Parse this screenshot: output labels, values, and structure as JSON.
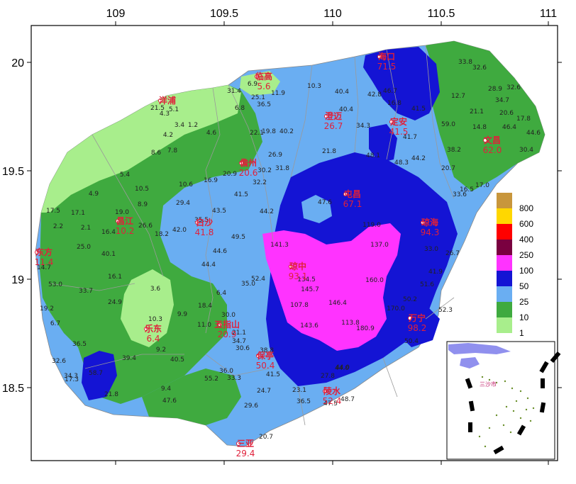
{
  "axes": {
    "lon_ticks": [
      "109",
      "109.5",
      "110",
      "110.5",
      "111"
    ],
    "lat_ticks": [
      "20",
      "19.5",
      "19",
      "18.5"
    ]
  },
  "legend": {
    "labels": [
      "800",
      "600",
      "400",
      "250",
      "100",
      "50",
      "25",
      "10",
      "1"
    ],
    "colors": [
      "#c8963c",
      "#ffd700",
      "#ff0000",
      "#7a0040",
      "#ff33ff",
      "#1414d4",
      "#6aaef2",
      "#3faa3f",
      "#a8ee8c"
    ]
  },
  "cities": [
    {
      "name": "海口",
      "value": "71.5"
    },
    {
      "name": "临高",
      "value": "5.6"
    },
    {
      "name": "洋浦",
      "value": ""
    },
    {
      "name": "澄迈",
      "value": "26.7"
    },
    {
      "name": "定安",
      "value": "41.5"
    },
    {
      "name": "文昌",
      "value": "62.0"
    },
    {
      "name": "儋州",
      "value": "20.6"
    },
    {
      "name": "屯昌",
      "value": "67.1"
    },
    {
      "name": "昌江",
      "value": "10.2"
    },
    {
      "name": "白沙",
      "value": "41.8"
    },
    {
      "name": "琼海",
      "value": "94.3"
    },
    {
      "name": "东方",
      "value": "11.4"
    },
    {
      "name": "琼中",
      "value": "93.1"
    },
    {
      "name": "乐东",
      "value": "6.4"
    },
    {
      "name": "五指山",
      "value": "20.9"
    },
    {
      "name": "万宁",
      "value": "98.2"
    },
    {
      "name": "保亭",
      "value": "50.4"
    },
    {
      "name": "陵水",
      "value": "52.4"
    },
    {
      "name": "三亚",
      "value": "29.4"
    }
  ],
  "values": [
    "33.8",
    "32.6",
    "28.9",
    "34.7",
    "32.6",
    "12.7",
    "21.1",
    "20.6",
    "17.8",
    "46.4",
    "44.6",
    "30.4",
    "59.0",
    "14.8",
    "38.2",
    "20.7",
    "16.5",
    "17.0",
    "33.6",
    "26.7",
    "33.0",
    "41.9",
    "51.6",
    "50.2",
    "52.3",
    "50.4",
    "113.8",
    "180.9",
    "160.0",
    "170.0",
    "146.4",
    "143.6",
    "107.8",
    "145.7",
    "134.5",
    "141.3",
    "119.0",
    "137.0",
    "44.0",
    "47.6",
    "48.3",
    "44.2",
    "41.5",
    "41.7",
    "10.3",
    "40.4",
    "42.8",
    "46.7",
    "40.4",
    "34.3",
    "16.8",
    "21.8",
    "48.1",
    "26.9",
    "31.8",
    "22.1",
    "19.8",
    "40.2",
    "32.2",
    "30.2",
    "20.9",
    "16.9",
    "10.6",
    "29.4",
    "35.5",
    "43.5",
    "41.5",
    "44.2",
    "42.0",
    "18.2",
    "44.6",
    "44.4",
    "49.5",
    "35.0",
    "52.4",
    "6.4",
    "18.4",
    "30.0",
    "11.0",
    "21.1",
    "34.7",
    "30.6",
    "38.8",
    "41.5",
    "36.0",
    "33.3",
    "55.2",
    "24.7",
    "23.1",
    "36.5",
    "47.5",
    "27.8",
    "44.0",
    "48.7",
    "29.6",
    "20.7",
    "21.5",
    "4.3",
    "5.1",
    "3.4",
    "1.2",
    "4.2",
    "4.6",
    "8.6",
    "7.8",
    "6.9",
    "31.4",
    "6.8",
    "25.1",
    "36.5",
    "11.9",
    "5.4",
    "4.9",
    "10.5",
    "8.9",
    "17.5",
    "17.1",
    "19.0",
    "2.2",
    "2.1",
    "16.4",
    "26.6",
    "25.0",
    "40.1",
    "16.1",
    "14.7",
    "53.0",
    "33.7",
    "24.9",
    "3.6",
    "10.3",
    "9.9",
    "19.2",
    "6.7",
    "36.5",
    "39.4",
    "9.2",
    "40.5",
    "32.6",
    "34.3",
    "17.3",
    "58.7",
    "21.8",
    "9.4",
    "47.6"
  ],
  "inset": {
    "label": "三沙市"
  }
}
